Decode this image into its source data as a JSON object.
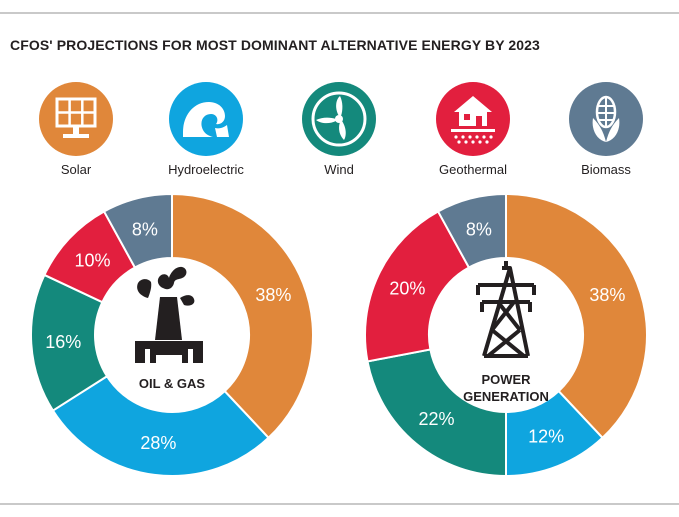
{
  "title": "CFOS' PROJECTIONS FOR MOST DOMINANT ALTERNATIVE ENERGY BY 2023",
  "legend": [
    {
      "name": "Solar",
      "color": "#e0873a",
      "icon": "solar-panel-icon"
    },
    {
      "name": "Hydroelectric",
      "color": "#0fa5df",
      "icon": "wave-icon"
    },
    {
      "name": "Wind",
      "color": "#14897c",
      "icon": "wind-turbine-icon"
    },
    {
      "name": "Geothermal",
      "color": "#e21f3e",
      "icon": "house-heat-icon"
    },
    {
      "name": "Biomass",
      "color": "#5f7a92",
      "icon": "corn-icon"
    }
  ],
  "chart_data": [
    {
      "type": "pie",
      "variant": "donut",
      "center_label": [
        "OIL & GAS"
      ],
      "center_icon": "oil-well-icon",
      "categories": [
        "Solar",
        "Hydroelectric",
        "Wind",
        "Geothermal",
        "Biomass"
      ],
      "values": [
        38,
        28,
        16,
        10,
        8
      ],
      "labels": [
        "38%",
        "28%",
        "16%",
        "10%",
        "8%"
      ]
    },
    {
      "type": "pie",
      "variant": "donut",
      "center_label": [
        "POWER",
        "GENERATION"
      ],
      "center_icon": "power-pylon-icon",
      "categories": [
        "Solar",
        "Hydroelectric",
        "Wind",
        "Geothermal",
        "Biomass"
      ],
      "values": [
        38,
        12,
        22,
        20,
        8
      ],
      "labels": [
        "38%",
        "12%",
        "22%",
        "20%",
        "8%"
      ]
    }
  ]
}
